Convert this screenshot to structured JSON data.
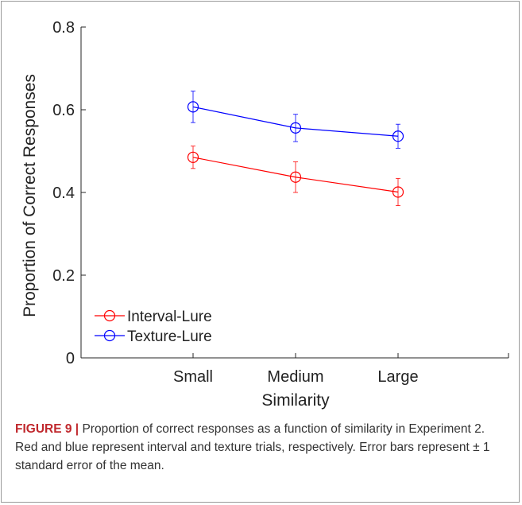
{
  "chart_data": {
    "type": "line",
    "xlabel": "Similarity",
    "ylabel": "Proportion of Correct Responses",
    "categories": [
      "Small",
      "Medium",
      "Large"
    ],
    "ylim": [
      0,
      0.8
    ],
    "yticks": [
      "0",
      "0.2",
      "0.4",
      "0.6",
      "0.8"
    ],
    "grid": false,
    "legend_position": "bottom-left",
    "series": [
      {
        "name": "Interval-Lure",
        "color": "#ff0000",
        "values": [
          0.485,
          0.437,
          0.401
        ],
        "errors": [
          0.027,
          0.037,
          0.033
        ]
      },
      {
        "name": "Texture-Lure",
        "color": "#0000ff",
        "values": [
          0.607,
          0.556,
          0.536
        ],
        "errors": [
          0.038,
          0.033,
          0.029
        ]
      }
    ]
  },
  "caption": {
    "lead": "FIGURE 9 |",
    "text": " Proportion of correct responses as a function of similarity in Experiment 2. Red and blue represent interval and texture trials, respectively. Error bars represent ± 1 standard error of the mean."
  }
}
